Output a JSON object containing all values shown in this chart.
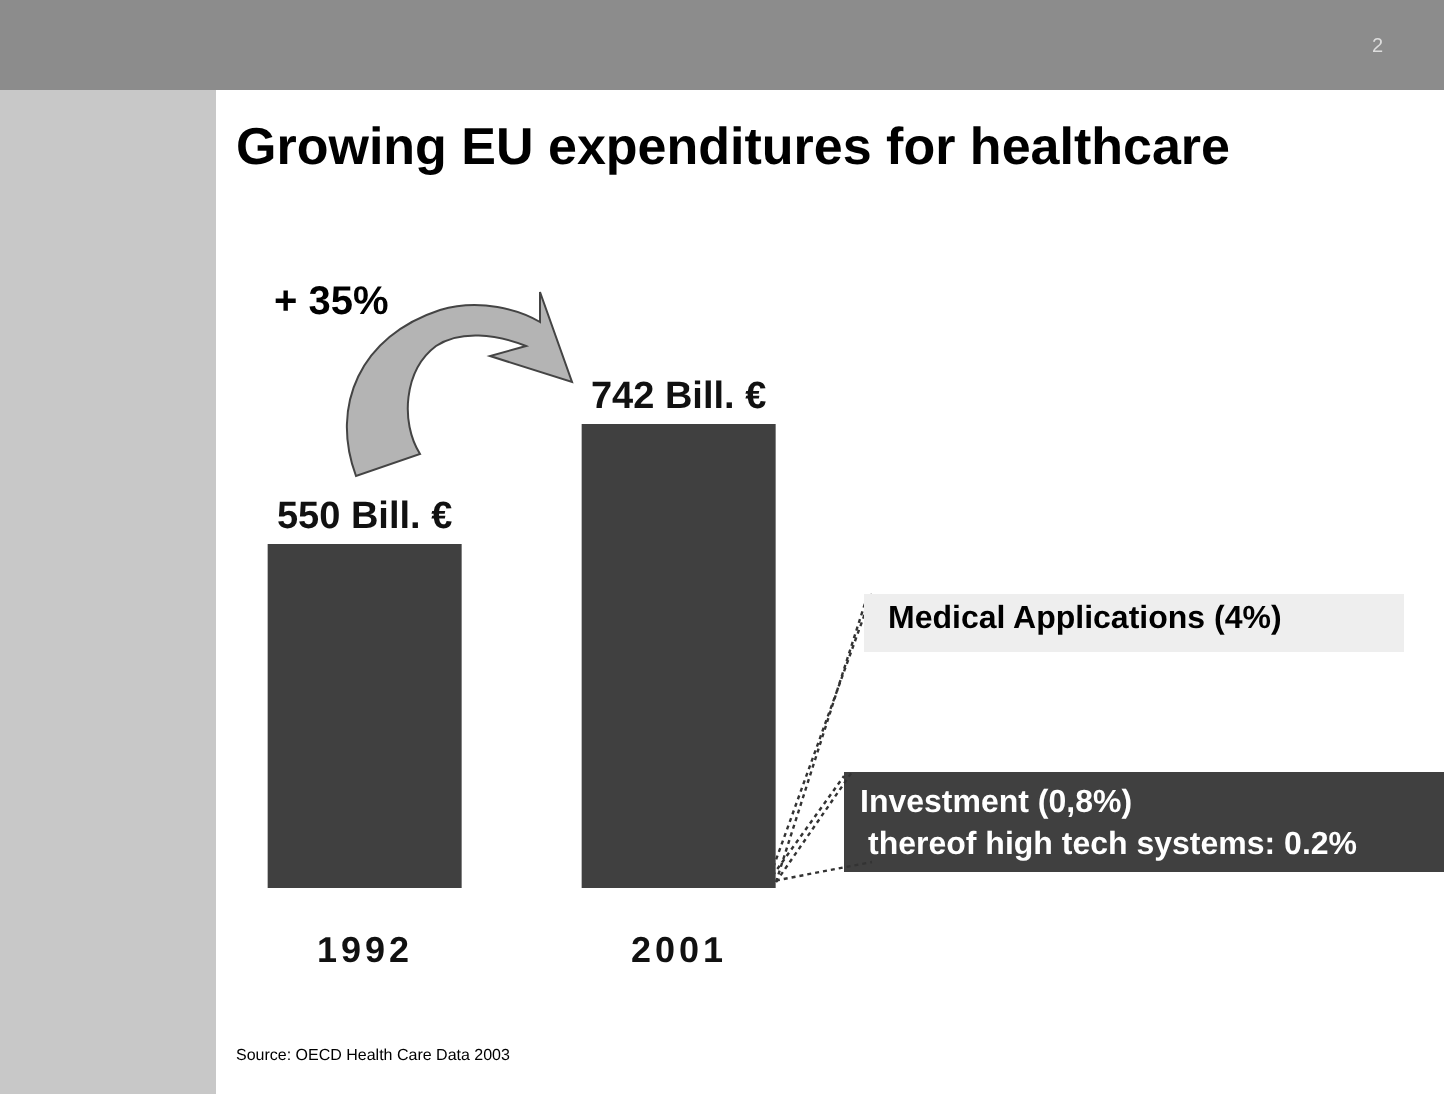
{
  "chart_data": {
    "type": "bar",
    "title": "Growing EU expenditures for healthcare",
    "categories": [
      "1992",
      "2001"
    ],
    "values": [
      550,
      742
    ],
    "value_labels": [
      "550 Bill. €",
      "742 Bill. €"
    ],
    "color": "#404040",
    "annotations": [
      "2",
      "+ 35%",
      "Medical Applications (4%)",
      "Investment (0,8%)",
      "thereof high tech systems: 0.2%",
      "Source: OECD Health Care Data 2003"
    ]
  }
}
